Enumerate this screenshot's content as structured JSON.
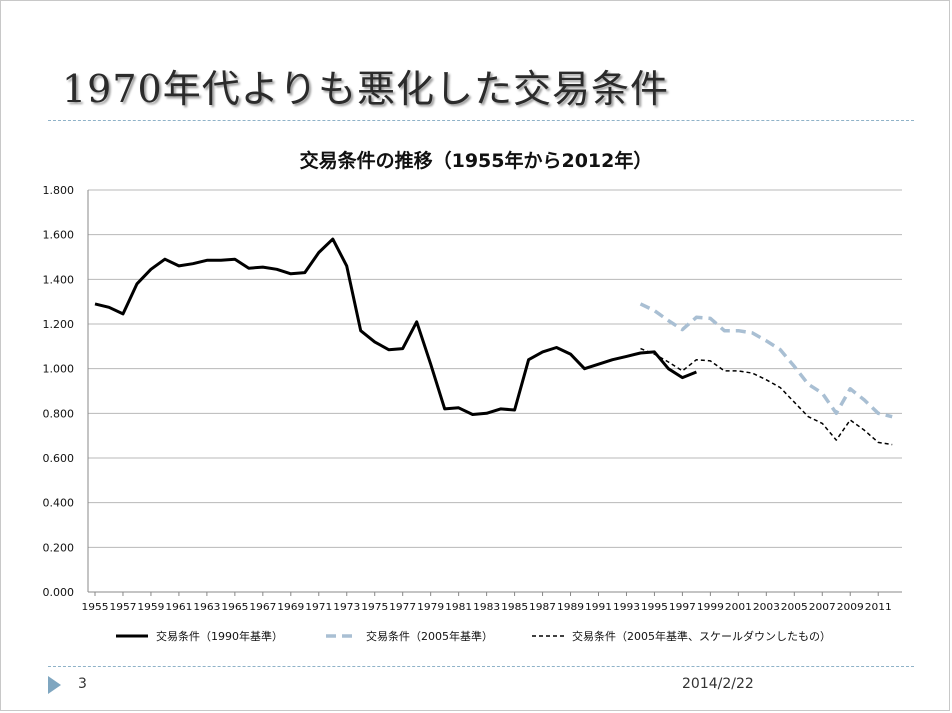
{
  "slide": {
    "title": "1970年代よりも悪化した交易条件",
    "page_number": "3",
    "date": "2014/2/22"
  },
  "icons": {
    "footer_marker": "triangle-right-icon"
  },
  "colors": {
    "series_1990": "#000000",
    "series_2005": "#a9bfd3",
    "series_scaled": "#000000",
    "grid": "#b8b8b8",
    "rule": "#8fb2c8"
  },
  "chart_data": {
    "type": "line",
    "title": "交易条件の推移（1955年から2012年）",
    "xlabel": "",
    "ylabel": "",
    "ylim": [
      0,
      1.8
    ],
    "xlim": [
      1955,
      2012
    ],
    "grid": true,
    "legend_position": "bottom",
    "y_ticks": [
      "0.000",
      "0.200",
      "0.400",
      "0.600",
      "0.800",
      "1.000",
      "1.200",
      "1.400",
      "1.600",
      "1.800"
    ],
    "x_ticks": [
      "1955",
      "1957",
      "1959",
      "1961",
      "1963",
      "1965",
      "1967",
      "1969",
      "1971",
      "1973",
      "1975",
      "1977",
      "1979",
      "1981",
      "1983",
      "1985",
      "1987",
      "1989",
      "1991",
      "1993",
      "1995",
      "1997",
      "1999",
      "2001",
      "2003",
      "2005",
      "2007",
      "2009",
      "2011"
    ],
    "series": [
      {
        "name": "交易条件（1990年基準）",
        "style": "solid",
        "x": [
          1955,
          1956,
          1957,
          1958,
          1959,
          1960,
          1961,
          1962,
          1963,
          1964,
          1965,
          1966,
          1967,
          1968,
          1969,
          1970,
          1971,
          1972,
          1973,
          1974,
          1975,
          1976,
          1977,
          1978,
          1979,
          1980,
          1981,
          1982,
          1983,
          1984,
          1985,
          1986,
          1987,
          1988,
          1989,
          1990,
          1991,
          1992,
          1993,
          1994,
          1995,
          1996,
          1997,
          1998
        ],
        "values": [
          1.29,
          1.275,
          1.245,
          1.38,
          1.445,
          1.49,
          1.46,
          1.47,
          1.485,
          1.485,
          1.49,
          1.45,
          1.455,
          1.445,
          1.425,
          1.43,
          1.52,
          1.58,
          1.46,
          1.17,
          1.12,
          1.085,
          1.09,
          1.21,
          1.02,
          0.82,
          0.825,
          0.795,
          0.8,
          0.82,
          0.815,
          1.04,
          1.075,
          1.095,
          1.065,
          1.0,
          1.02,
          1.04,
          1.055,
          1.07,
          1.075,
          1.0,
          0.96,
          0.985
        ]
      },
      {
        "name": "交易条件（2005年基準）",
        "style": "dashed",
        "x": [
          1994,
          1995,
          1996,
          1997,
          1998,
          1999,
          2000,
          2001,
          2002,
          2003,
          2004,
          2005,
          2006,
          2007,
          2008,
          2009,
          2010,
          2011,
          2012
        ],
        "values": [
          1.29,
          1.26,
          1.215,
          1.175,
          1.23,
          1.225,
          1.17,
          1.17,
          1.16,
          1.125,
          1.085,
          1.01,
          0.93,
          0.89,
          0.8,
          0.91,
          0.86,
          0.8,
          0.785
        ]
      },
      {
        "name": "交易条件（2005年基準、スケールダウンしたもの）",
        "style": "dotted",
        "x": [
          1994,
          1995,
          1996,
          1997,
          1998,
          1999,
          2000,
          2001,
          2002,
          2003,
          2004,
          2005,
          2006,
          2007,
          2008,
          2009,
          2010,
          2011,
          2012
        ],
        "values": [
          1.09,
          1.065,
          1.03,
          0.99,
          1.04,
          1.035,
          0.99,
          0.99,
          0.98,
          0.95,
          0.915,
          0.85,
          0.785,
          0.755,
          0.68,
          0.77,
          0.725,
          0.67,
          0.66
        ]
      }
    ]
  }
}
